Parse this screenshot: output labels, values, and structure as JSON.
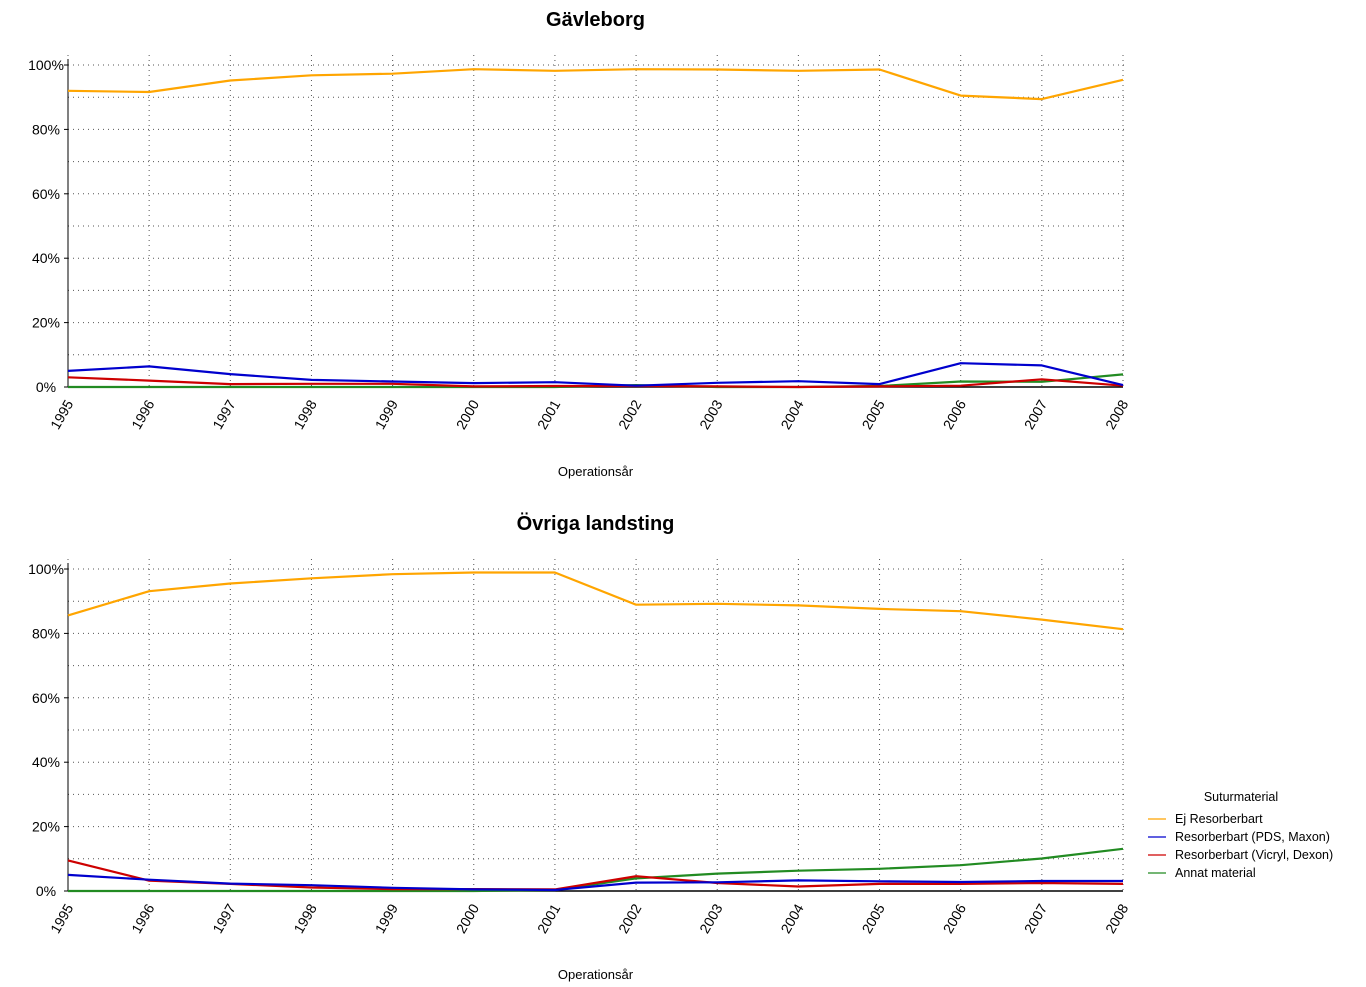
{
  "chart_data": [
    {
      "type": "line",
      "title": "Gävleborg",
      "xlabel": "Operationsår",
      "ylabel": "",
      "ylim": [
        0,
        100
      ],
      "y_tick_labels": [
        "0%",
        "20%",
        "40%",
        "60%",
        "80%",
        "100%"
      ],
      "grid": "dotted",
      "x": [
        "1995",
        "1996",
        "1997",
        "1998",
        "1999",
        "2000",
        "2001",
        "2002",
        "2003",
        "2004",
        "2005",
        "2006",
        "2007",
        "2008"
      ],
      "series": [
        {
          "name": "Ej Resorberbart",
          "color": "#FFA500",
          "values": [
            92.0,
            91.6,
            95.2,
            96.8,
            97.3,
            98.7,
            98.2,
            98.7,
            98.6,
            98.2,
            98.6,
            90.5,
            89.4,
            95.4
          ]
        },
        {
          "name": "Resorberbart (PDS, Maxon)",
          "color": "#0000CD",
          "values": [
            5.0,
            6.4,
            4.0,
            2.2,
            1.7,
            1.2,
            1.5,
            0.4,
            1.3,
            1.8,
            0.9,
            7.4,
            6.7,
            0.6
          ]
        },
        {
          "name": "Resorberbart (Vicryl, Dexon)",
          "color": "#CD0000",
          "values": [
            3.0,
            2.0,
            0.9,
            1.0,
            1.0,
            0.2,
            0.3,
            0.3,
            0.2,
            0.0,
            0.2,
            0.4,
            2.4,
            0.4
          ]
        },
        {
          "name": "Annat material",
          "color": "#228B22",
          "values": [
            0.0,
            0.0,
            0.0,
            0.0,
            0.0,
            0.0,
            0.0,
            0.6,
            0.0,
            0.0,
            0.3,
            1.7,
            1.6,
            3.9
          ]
        }
      ]
    },
    {
      "type": "line",
      "title": "Övriga landsting",
      "xlabel": "Operationsår",
      "ylabel": "",
      "ylim": [
        0,
        100
      ],
      "y_tick_labels": [
        "0%",
        "20%",
        "40%",
        "60%",
        "80%",
        "100%"
      ],
      "grid": "dotted",
      "x": [
        "1995",
        "1996",
        "1997",
        "1998",
        "1999",
        "2000",
        "2001",
        "2002",
        "2003",
        "2004",
        "2005",
        "2006",
        "2007",
        "2008"
      ],
      "series": [
        {
          "name": "Ej Resorberbart",
          "color": "#FFA500",
          "values": [
            85.6,
            93.1,
            95.5,
            97.1,
            98.4,
            98.9,
            98.9,
            88.9,
            89.2,
            88.7,
            87.6,
            86.9,
            84.3,
            81.3
          ]
        },
        {
          "name": "Resorberbart (PDS, Maxon)",
          "color": "#0000CD",
          "values": [
            5.0,
            3.5,
            2.3,
            1.8,
            1.0,
            0.5,
            0.3,
            2.6,
            2.7,
            3.3,
            3.0,
            2.8,
            3.1,
            3.1
          ]
        },
        {
          "name": "Resorberbart (Vicryl, Dexon)",
          "color": "#CD0000",
          "values": [
            9.5,
            3.2,
            2.2,
            1.1,
            0.6,
            0.6,
            0.5,
            4.6,
            2.5,
            1.4,
            2.2,
            2.2,
            2.5,
            2.2
          ]
        },
        {
          "name": "Annat material",
          "color": "#228B22",
          "values": [
            0.0,
            0.0,
            0.0,
            0.0,
            0.0,
            0.0,
            0.3,
            3.9,
            5.4,
            6.3,
            6.9,
            8.0,
            10.1,
            13.1
          ]
        }
      ]
    }
  ],
  "legend": {
    "title": "Suturmaterial",
    "placement": "right-bottom",
    "items": [
      {
        "label": "Ej Resorberbart",
        "color": "#FFA500"
      },
      {
        "label": "Resorberbart (PDS, Maxon)",
        "color": "#0000CD"
      },
      {
        "label": "Resorberbart (Vicryl, Dexon)",
        "color": "#CD0000"
      },
      {
        "label": "Annat material",
        "color": "#228B22"
      }
    ]
  }
}
